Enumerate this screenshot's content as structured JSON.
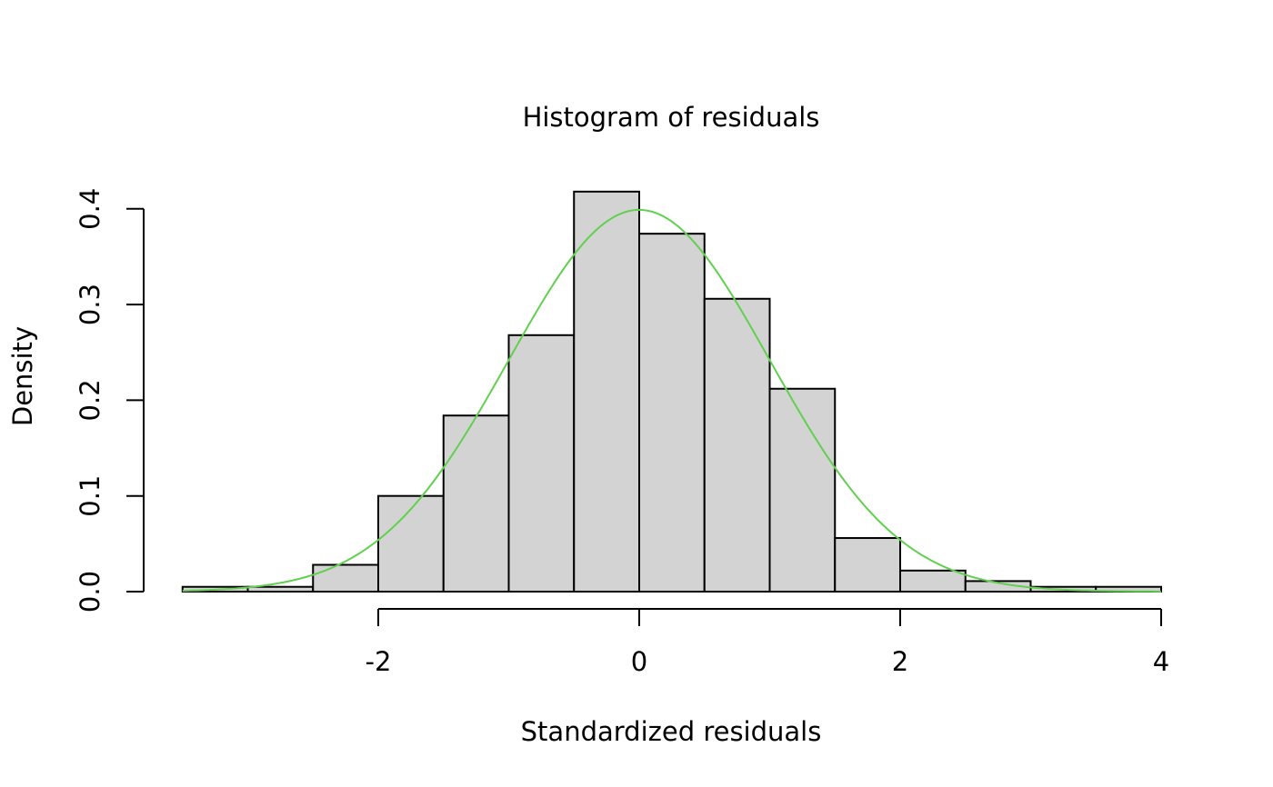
{
  "chart_data": {
    "type": "bar",
    "title": "Histogram of residuals",
    "xlabel": "Standardized residuals",
    "ylabel": "Density",
    "xlim": [
      -3.5,
      4
    ],
    "ylim": [
      0,
      0.4
    ],
    "x_ticks": [
      -2,
      0,
      2,
      4
    ],
    "y_ticks": [
      0.0,
      0.1,
      0.2,
      0.3,
      0.4
    ],
    "x_tick_labels": [
      "-2",
      "0",
      "2",
      "4"
    ],
    "y_tick_labels": [
      "0.0",
      "0.1",
      "0.2",
      "0.3",
      "0.4"
    ],
    "grid": false,
    "bins": [
      {
        "start": -3.5,
        "end": -3.0,
        "density": 0.005
      },
      {
        "start": -3.0,
        "end": -2.5,
        "density": 0.005
      },
      {
        "start": -2.5,
        "end": -2.0,
        "density": 0.028
      },
      {
        "start": -2.0,
        "end": -1.5,
        "density": 0.1
      },
      {
        "start": -1.5,
        "end": -1.0,
        "density": 0.184
      },
      {
        "start": -1.0,
        "end": -0.5,
        "density": 0.268
      },
      {
        "start": -0.5,
        "end": 0.0,
        "density": 0.418
      },
      {
        "start": 0.0,
        "end": 0.5,
        "density": 0.374
      },
      {
        "start": 0.5,
        "end": 1.0,
        "density": 0.306
      },
      {
        "start": 1.0,
        "end": 1.5,
        "density": 0.212
      },
      {
        "start": 1.5,
        "end": 2.0,
        "density": 0.056
      },
      {
        "start": 2.0,
        "end": 2.5,
        "density": 0.022
      },
      {
        "start": 2.5,
        "end": 3.0,
        "density": 0.011
      },
      {
        "start": 3.0,
        "end": 3.5,
        "density": 0.005
      },
      {
        "start": 3.5,
        "end": 4.0,
        "density": 0.005
      }
    ],
    "curve": {
      "type": "normal-density",
      "mean": 0,
      "sd": 1,
      "color": "#61d04f"
    },
    "bar_color": "#d3d3d3"
  }
}
